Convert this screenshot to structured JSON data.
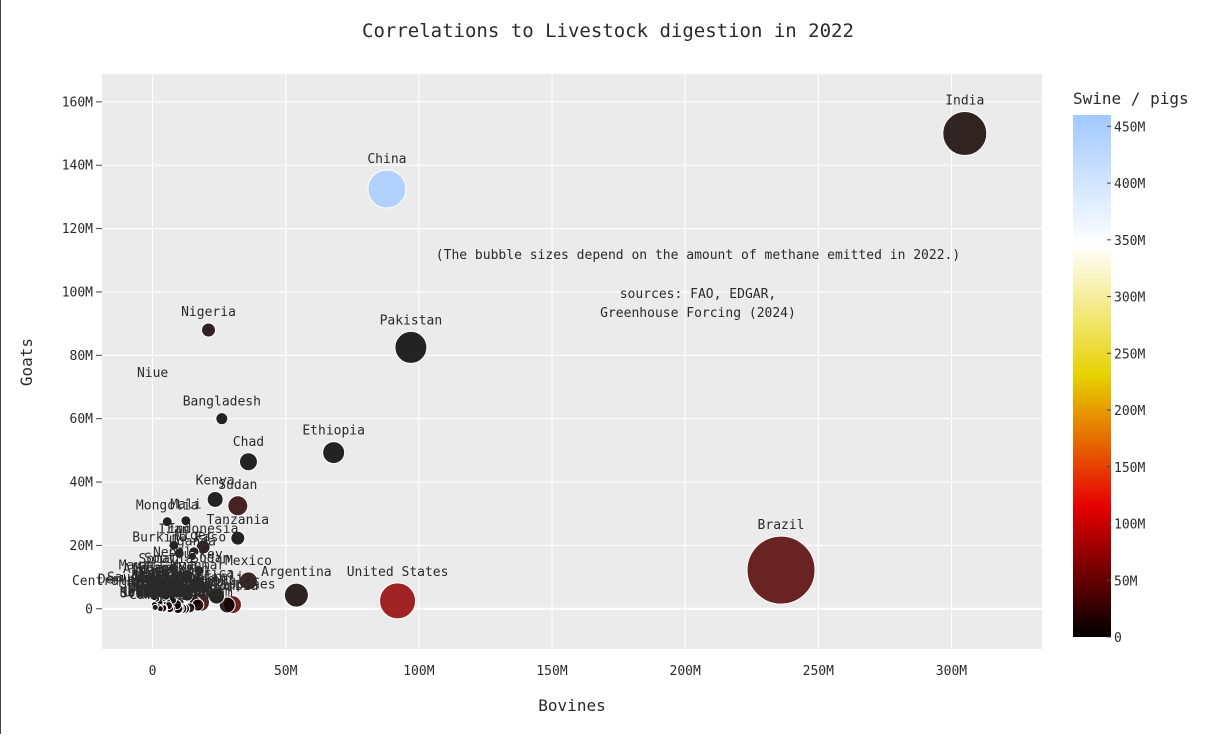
{
  "chart_data": {
    "type": "scatter",
    "title": "Correlations to Livestock digestion in 2022",
    "xlabel": "Bovines",
    "ylabel": "Goats",
    "colorbar_title": "Swine / pigs",
    "xlim": [
      -19000000,
      334000000
    ],
    "ylim": [
      -12700000,
      168800000
    ],
    "x_ticks": [
      0,
      50000000,
      100000000,
      150000000,
      200000000,
      250000000,
      300000000
    ],
    "x_tick_labels": [
      "0",
      "50M",
      "100M",
      "150M",
      "200M",
      "250M",
      "300M"
    ],
    "y_ticks": [
      0,
      20000000,
      40000000,
      60000000,
      80000000,
      100000000,
      120000000,
      140000000,
      160000000
    ],
    "y_tick_labels": [
      "0",
      "20M",
      "40M",
      "60M",
      "80M",
      "100M",
      "120M",
      "140M",
      "160M"
    ],
    "color_range": [
      0,
      460000000
    ],
    "colorbar_ticks": [
      0,
      50000000,
      100000000,
      150000000,
      200000000,
      250000000,
      300000000,
      350000000,
      400000000,
      450000000
    ],
    "colorbar_tick_labels": [
      "0",
      "50M",
      "100M",
      "150M",
      "200M",
      "250M",
      "300M",
      "350M",
      "400M",
      "450M"
    ],
    "colorscale": [
      "#000000",
      "#e60000",
      "#e6d200",
      "#ffffff",
      "#a0c8ff"
    ],
    "grid": true,
    "annotation_lines": [
      "(The bubble sizes depend on the amount of methane emitted in 2022.)",
      "sources: FAO, EDGAR,",
      "Greenhouse Forcing (2024)"
    ],
    "points": [
      {
        "label": "India",
        "x": 305000000,
        "y": 150000000,
        "swine": 9000000,
        "size": 22
      },
      {
        "label": "China",
        "x": 88000000,
        "y": 132500000,
        "swine": 452000000,
        "size": 19
      },
      {
        "label": "Brazil",
        "x": 236000000,
        "y": 12200000,
        "swine": 42000000,
        "size": 34
      },
      {
        "label": "United States",
        "x": 92000000,
        "y": 2500000,
        "swine": 73000000,
        "size": 18
      },
      {
        "label": "Pakistan",
        "x": 97000000,
        "y": 82500000,
        "swine": 0,
        "size": 16
      },
      {
        "label": "Nigeria",
        "x": 21000000,
        "y": 88000000,
        "swine": 8000000,
        "size": 7
      },
      {
        "label": "Niue",
        "x": 0,
        "y": 71000000,
        "swine": 0,
        "size": 0
      },
      {
        "label": "Bangladesh",
        "x": 26000000,
        "y": 60000000,
        "swine": 0,
        "size": 6
      },
      {
        "label": "Ethiopia",
        "x": 68000000,
        "y": 49300000,
        "swine": 0,
        "size": 11
      },
      {
        "label": "Chad",
        "x": 36000000,
        "y": 46400000,
        "swine": 0,
        "size": 9
      },
      {
        "label": "Kenya",
        "x": 23500000,
        "y": 34500000,
        "swine": 0,
        "size": 8
      },
      {
        "label": "Sudan",
        "x": 32000000,
        "y": 32500000,
        "swine": 21000000,
        "size": 10
      },
      {
        "label": "Mongolia",
        "x": 5500000,
        "y": 27500000,
        "swine": 0,
        "size": 5
      },
      {
        "label": "Mali",
        "x": 12500000,
        "y": 27800000,
        "swine": 0,
        "size": 5
      },
      {
        "label": "Tanzania",
        "x": 32000000,
        "y": 22300000,
        "swine": 0,
        "size": 7
      },
      {
        "label": "Indonesia",
        "x": 19000000,
        "y": 19500000,
        "swine": 8000000,
        "size": 7
      },
      {
        "label": "Iran",
        "x": 8000000,
        "y": 20000000,
        "swine": 0,
        "size": 5
      },
      {
        "label": "Niger",
        "x": 15500000,
        "y": 18000000,
        "swine": 0,
        "size": 5
      },
      {
        "label": "Burkina Faso",
        "x": 10000000,
        "y": 17500000,
        "swine": 0,
        "size": 5
      },
      {
        "label": "Uganda",
        "x": 15000000,
        "y": 16500000,
        "swine": 0,
        "size": 4
      },
      {
        "label": "Turkey",
        "x": 17500000,
        "y": 12000000,
        "swine": 0,
        "size": 5
      },
      {
        "label": "Mexico",
        "x": 36000000,
        "y": 8800000,
        "swine": 19000000,
        "size": 9
      },
      {
        "label": "Argentina",
        "x": 54000000,
        "y": 4300000,
        "swine": 6000000,
        "size": 12
      },
      {
        "label": "Philippines",
        "x": 30000000,
        "y": 1300000,
        "swine": 43000000,
        "size": 9
      },
      {
        "label": "Somalia",
        "x": 5000000,
        "y": 11000000,
        "swine": 0,
        "size": 4
      },
      {
        "label": "Morocco",
        "x": 3500000,
        "y": 5800000,
        "swine": 0,
        "size": 4
      },
      {
        "label": "Afghanistan",
        "x": 5000000,
        "y": 7500000,
        "swine": 0,
        "size": 5
      },
      {
        "label": "Saudi Arabia",
        "x": 500000,
        "y": 5200000,
        "swine": 0,
        "size": 4
      },
      {
        "label": "Yemen",
        "x": 2000000,
        "y": 4000000,
        "swine": 0,
        "size": 4
      },
      {
        "label": "South Africa",
        "x": 13000000,
        "y": 5400000,
        "swine": 2000000,
        "size": 7
      },
      {
        "label": "Nepal",
        "x": 7500000,
        "y": 13000000,
        "swine": 0,
        "size": 4
      },
      {
        "label": "Myanmar",
        "x": 17000000,
        "y": 8000000,
        "swine": 14000000,
        "size": 7
      },
      {
        "label": "Senegal",
        "x": 3500000,
        "y": 6500000,
        "swine": 0,
        "size": 4
      },
      {
        "label": "Mauritania",
        "x": 2000000,
        "y": 9000000,
        "swine": 0,
        "size": 4
      },
      {
        "label": "Syria",
        "x": 800000,
        "y": 1200000,
        "swine": 0,
        "size": 3
      },
      {
        "label": "Viet Nam",
        "x": 9000000,
        "y": 1200000,
        "swine": 25000000,
        "size": 6
      },
      {
        "label": "Cameroon",
        "x": 7000000,
        "y": 7000000,
        "swine": 1000000,
        "size": 5
      },
      {
        "label": "Guinea",
        "x": 7500000,
        "y": 2700000,
        "swine": 0,
        "size": 4
      },
      {
        "label": "Zimbabwe",
        "x": 6000000,
        "y": 5000000,
        "swine": 0,
        "size": 4
      },
      {
        "label": "Mozambique",
        "x": 2000000,
        "y": 3500000,
        "swine": 1000000,
        "size": 4
      },
      {
        "label": "South Sudan",
        "x": 13000000,
        "y": 10500000,
        "swine": 0,
        "size": 6
      },
      {
        "label": "Dem. Rep. Congo",
        "x": 1500000,
        "y": 4500000,
        "swine": 1000000,
        "size": 4
      },
      {
        "label": "Colombia",
        "x": 28000000,
        "y": 1200000,
        "swine": 7000000,
        "size": 8
      },
      {
        "label": "Australia",
        "x": 24000000,
        "y": 4000000,
        "swine": 2500000,
        "size": 8
      },
      {
        "label": "Russia",
        "x": 18000000,
        "y": 2000000,
        "swine": 26000000,
        "size": 9
      },
      {
        "label": "Egypt",
        "x": 8000000,
        "y": 4000000,
        "swine": 0,
        "size": 5
      },
      {
        "label": "Algeria",
        "x": 2000000,
        "y": 5000000,
        "swine": 0,
        "size": 4
      },
      {
        "label": "Iraq",
        "x": 3000000,
        "y": 1500000,
        "swine": 0,
        "size": 3
      },
      {
        "label": "Kazakhstan",
        "x": 8000000,
        "y": 2500000,
        "swine": 800000,
        "size": 5
      },
      {
        "label": "Thailand",
        "x": 5000000,
        "y": 600000,
        "swine": 9000000,
        "size": 4
      },
      {
        "label": "Venezuela",
        "x": 16000000,
        "y": 2000000,
        "swine": 2000000,
        "size": 6
      },
      {
        "label": "Paraguay",
        "x": 14000000,
        "y": 300000,
        "swine": 1500000,
        "size": 5
      },
      {
        "label": "Uruguay",
        "x": 12000000,
        "y": 0,
        "swine": 200000,
        "size": 5
      },
      {
        "label": "Bolivia",
        "x": 10000000,
        "y": 1800000,
        "swine": 3000000,
        "size": 5
      },
      {
        "label": "France",
        "x": 17000000,
        "y": 1200000,
        "swine": 13000000,
        "size": 6
      },
      {
        "label": "Germany",
        "x": 11000000,
        "y": 100000,
        "swine": 24000000,
        "size": 5
      },
      {
        "label": "Canada",
        "x": 11000000,
        "y": 30000,
        "swine": 14000000,
        "size": 5
      },
      {
        "label": "New Zealand",
        "x": 10000000,
        "y": 80000,
        "swine": 250000,
        "size": 5
      },
      {
        "label": "Ireland",
        "x": 7000000,
        "y": 10000,
        "swine": 1600000,
        "size": 4
      },
      {
        "label": "Spain",
        "x": 6500000,
        "y": 2700000,
        "swine": 34000000,
        "size": 5
      },
      {
        "label": "United Kingdom",
        "x": 9500000,
        "y": 100000,
        "swine": 5000000,
        "size": 5
      },
      {
        "label": "Peru",
        "x": 5500000,
        "y": 1900000,
        "swine": 3300000,
        "size": 4
      },
      {
        "label": "Poland",
        "x": 6400000,
        "y": 50000,
        "swine": 10000000,
        "size": 4
      },
      {
        "label": "Italy",
        "x": 6000000,
        "y": 1000000,
        "swine": 8700000,
        "size": 4
      },
      {
        "label": "Ecuador",
        "x": 4200000,
        "y": 20000,
        "swine": 1800000,
        "size": 4
      },
      {
        "label": "Madagascar",
        "x": 9000000,
        "y": 1300000,
        "swine": 1500000,
        "size": 5
      },
      {
        "label": "Netherlands",
        "x": 3800000,
        "y": 600000,
        "swine": 11000000,
        "size": 4
      },
      {
        "label": "Cuba",
        "x": 3600000,
        "y": 2000000,
        "swine": 1500000,
        "size": 4
      },
      {
        "label": "Angola",
        "x": 4500000,
        "y": 4000000,
        "swine": 3000000,
        "size": 4
      },
      {
        "label": "Zambia",
        "x": 4300000,
        "y": 3500000,
        "swine": 1200000,
        "size": 4
      },
      {
        "label": "Botswana",
        "x": 2300000,
        "y": 1800000,
        "swine": 0,
        "size": 3
      },
      {
        "label": "Namibia",
        "x": 2800000,
        "y": 2000000,
        "swine": 0,
        "size": 3
      },
      {
        "label": "Malawi",
        "x": 1500000,
        "y": 8000000,
        "swine": 6000000,
        "size": 4
      },
      {
        "label": "Tunisia",
        "x": 700000,
        "y": 1300000,
        "swine": 0,
        "size": 3
      },
      {
        "label": "Uzbekistan",
        "x": 13000000,
        "y": 4300000,
        "swine": 200000,
        "size": 6
      },
      {
        "label": "Burundi",
        "x": 1000000,
        "y": 3800000,
        "swine": 800000,
        "size": 3
      },
      {
        "label": "Eritrea",
        "x": 2200000,
        "y": 6000000,
        "swine": 0,
        "size": 3
      },
      {
        "label": "Japan",
        "x": 3900000,
        "y": 20000,
        "swine": 9000000,
        "size": 4
      },
      {
        "label": "South Korea",
        "x": 3800000,
        "y": 200000,
        "swine": 11000000,
        "size": 4
      },
      {
        "label": "Central African Republic",
        "x": 5000000,
        "y": 4000000,
        "swine": 900000,
        "size": 4
      },
      {
        "label": "Ghana",
        "x": 1900000,
        "y": 8200000,
        "swine": 1000000,
        "size": 4
      },
      {
        "label": "Rwanda",
        "x": 1500000,
        "y": 3000000,
        "swine": 1500000,
        "size": 3
      },
      {
        "label": "Laos",
        "x": 2300000,
        "y": 600000,
        "swine": 4000000,
        "size": 3
      },
      {
        "label": "Cambodia",
        "x": 2900000,
        "y": 0,
        "swine": 2000000,
        "size": 3
      },
      {
        "label": "Sri Lanka",
        "x": 1000000,
        "y": 400000,
        "swine": 100000,
        "size": 3
      },
      {
        "label": "Greece",
        "x": 600000,
        "y": 3500000,
        "swine": 700000,
        "size": 3
      }
    ]
  }
}
